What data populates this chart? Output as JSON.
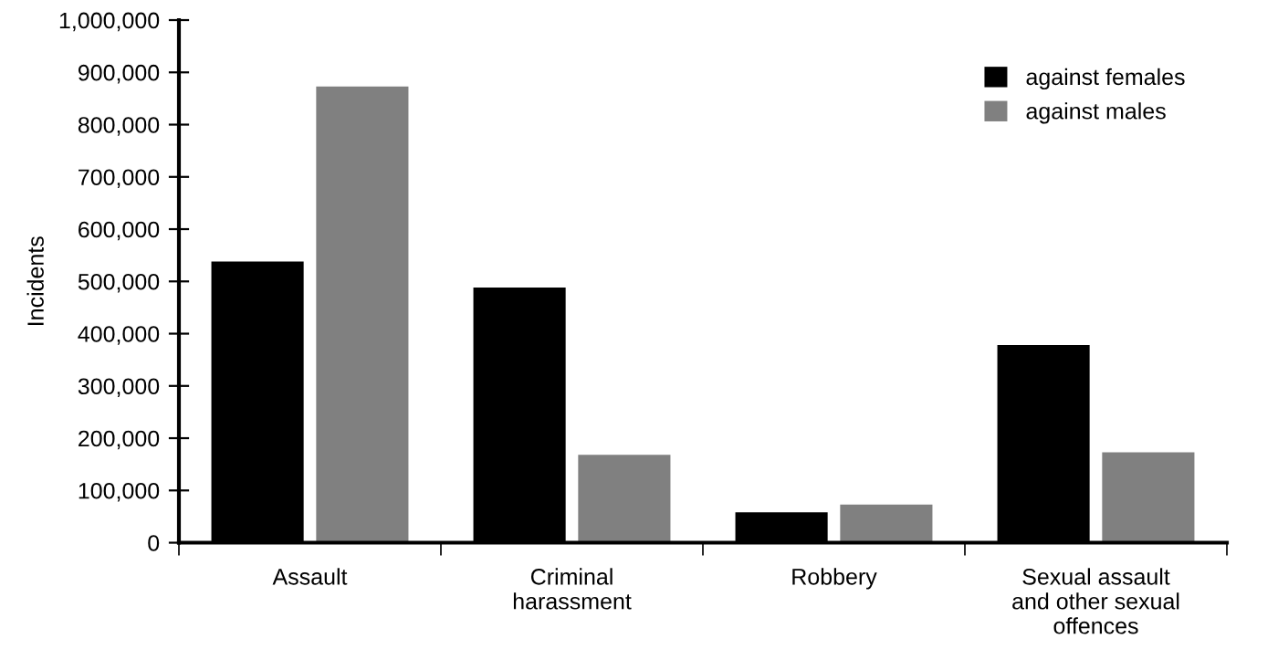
{
  "chart_data": {
    "type": "bar",
    "ylabel": "Incidents",
    "categories": [
      "Assault",
      "Criminal\nharassment",
      "Robbery",
      "Sexual assault\nand other sexual\noffences"
    ],
    "series": [
      {
        "name": "against females",
        "color": "#000000",
        "values": [
          540000,
          490000,
          60000,
          380000
        ]
      },
      {
        "name": "against males",
        "color": "#808080",
        "values": [
          875000,
          170000,
          75000,
          175000
        ]
      }
    ],
    "ylim": [
      0,
      1000000
    ],
    "yticks": [
      {
        "value": 0,
        "label": "0"
      },
      {
        "value": 100000,
        "label": "100,000"
      },
      {
        "value": 200000,
        "label": "200,000"
      },
      {
        "value": 300000,
        "label": "300,000"
      },
      {
        "value": 400000,
        "label": "400,000"
      },
      {
        "value": 500000,
        "label": "500,000"
      },
      {
        "value": 600000,
        "label": "600,000"
      },
      {
        "value": 700000,
        "label": "700,000"
      },
      {
        "value": 800000,
        "label": "800,000"
      },
      {
        "value": 900000,
        "label": "900,000"
      },
      {
        "value": 1000000,
        "label": "1,000,000"
      }
    ],
    "grid": false,
    "legend": "top right"
  }
}
